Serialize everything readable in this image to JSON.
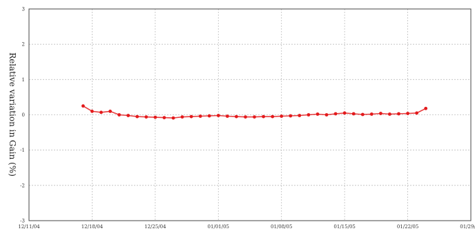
{
  "chart_data": {
    "type": "scatter",
    "title": "",
    "xlabel": "",
    "ylabel": "Relative variation in Gain (%)",
    "x_ticks": [
      "12/11/04",
      "12/18/04",
      "12/25/04",
      "01/01/05",
      "01/08/05",
      "01/15/05",
      "01/22/05",
      "01/29/05"
    ],
    "xlim": [
      "12/11/04",
      "01/29/05"
    ],
    "y_ticks": [
      "3",
      "2",
      "1",
      "0",
      "-1",
      "-2",
      "-3"
    ],
    "ylim": [
      -3,
      3
    ],
    "grid": true,
    "legend": "none",
    "marker_color": "#e31a1c",
    "series": [
      {
        "x": [
          "12/17/04",
          "12/18/04",
          "12/19/04",
          "12/20/04",
          "12/21/04",
          "12/22/04",
          "12/23/04",
          "12/24/04",
          "12/25/04",
          "12/26/04",
          "12/27/04",
          "12/28/04",
          "12/29/04",
          "12/30/04",
          "12/31/04",
          "01/01/05",
          "01/02/05",
          "01/03/05",
          "01/04/05",
          "01/05/05",
          "01/06/05",
          "01/07/05",
          "01/08/05",
          "01/09/05",
          "01/10/05",
          "01/11/05",
          "01/12/05",
          "01/13/05",
          "01/14/05",
          "01/15/05",
          "01/16/05",
          "01/17/05",
          "01/18/05",
          "01/19/05",
          "01/20/05",
          "01/21/05",
          "01/22/05",
          "01/23/05",
          "01/24/05"
        ],
        "y": [
          0.25,
          0.1,
          0.07,
          0.1,
          0.0,
          -0.02,
          -0.05,
          -0.06,
          -0.07,
          -0.08,
          -0.09,
          -0.06,
          -0.05,
          -0.04,
          -0.03,
          -0.02,
          -0.04,
          -0.05,
          -0.06,
          -0.06,
          -0.05,
          -0.05,
          -0.04,
          -0.03,
          -0.02,
          0.0,
          0.02,
          0.0,
          0.03,
          0.05,
          0.03,
          0.01,
          0.02,
          0.04,
          0.02,
          0.03,
          0.04,
          0.05,
          0.18
        ]
      }
    ]
  }
}
